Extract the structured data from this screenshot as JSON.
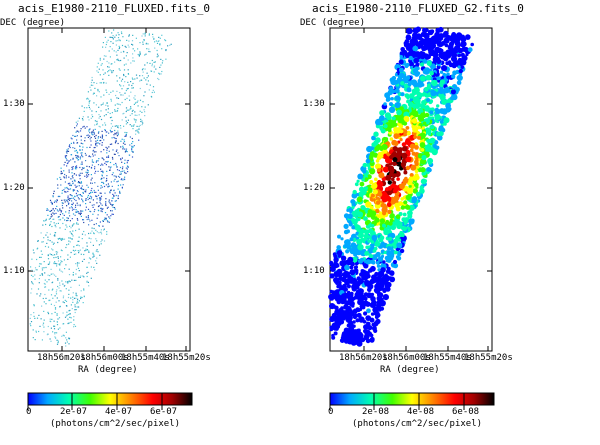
{
  "panels": [
    {
      "title": "acis_E1980-2110_FLUXED.fits_0",
      "ylabel": "DEC (degree)",
      "xlabel": "RA (degree)",
      "yticks": [
        "1:30",
        "1:20",
        "1:10"
      ],
      "xticks": [
        "18h56m20s",
        "18h56m00s",
        "18h55m40s",
        "18h55m20s"
      ],
      "colorbar": {
        "ticks": [
          "0",
          "2e-07",
          "4e-07",
          "6e-07"
        ],
        "unit": "(photons/cm^2/sec/pixel)"
      }
    },
    {
      "title": "acis_E1980-2110_FLUXED_G2.fits_0",
      "ylabel": "DEC (degree)",
      "xlabel": "RA (degree)",
      "yticks": [
        "1:30",
        "1:20",
        "1:10"
      ],
      "xticks": [
        "18h56m20s",
        "18h56m00s",
        "18h55m40s",
        "18h55m20s"
      ],
      "colorbar": {
        "ticks": [
          "0",
          "2e-08",
          "4e-08",
          "6e-08"
        ],
        "unit": "(photons/cm^2/sec/pixel)"
      }
    }
  ],
  "colormap": [
    "#0000ff",
    "#00a8ff",
    "#00ffb0",
    "#40ff00",
    "#ffff00",
    "#ff8000",
    "#ff0000",
    "#a00000",
    "#000000"
  ]
}
